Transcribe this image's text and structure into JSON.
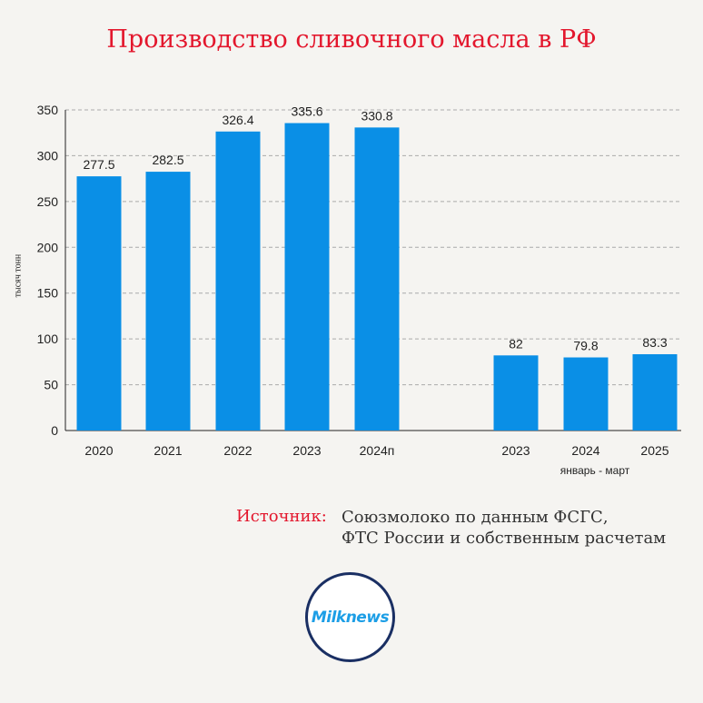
{
  "title": "Производство сливочного масла в РФ",
  "ylabel": "тысяч тонн",
  "period_note": "январь - март",
  "source": {
    "label": "Источник:",
    "line1": "Союзмолоко по данным ФСГС,",
    "line2": "ФТС России и собственным расчетам"
  },
  "logo_text": "Milknews",
  "colors": {
    "bar": "#0a8fe6",
    "title": "#e3172d",
    "grid": "#aaaaaa"
  },
  "chart_data": {
    "type": "bar",
    "title": "Производство сливочного масла в РФ",
    "ylabel": "тысяч тонн",
    "ylim": [
      0,
      350
    ],
    "yticks": [
      0,
      50,
      100,
      150,
      200,
      250,
      300,
      350
    ],
    "grid": true,
    "groups": [
      {
        "categories": [
          "2020",
          "2021",
          "2022",
          "2023",
          "2024п"
        ],
        "values": [
          277.5,
          282.5,
          326.4,
          335.6,
          330.8
        ],
        "labels": [
          "277.5",
          "282.5",
          "326.4",
          "335.6",
          "330.8"
        ]
      },
      {
        "note": "январь - март",
        "categories": [
          "2023",
          "2024",
          "2025"
        ],
        "values": [
          82,
          79.8,
          83.3
        ],
        "labels": [
          "82",
          "79.8",
          "83.3"
        ]
      }
    ]
  }
}
